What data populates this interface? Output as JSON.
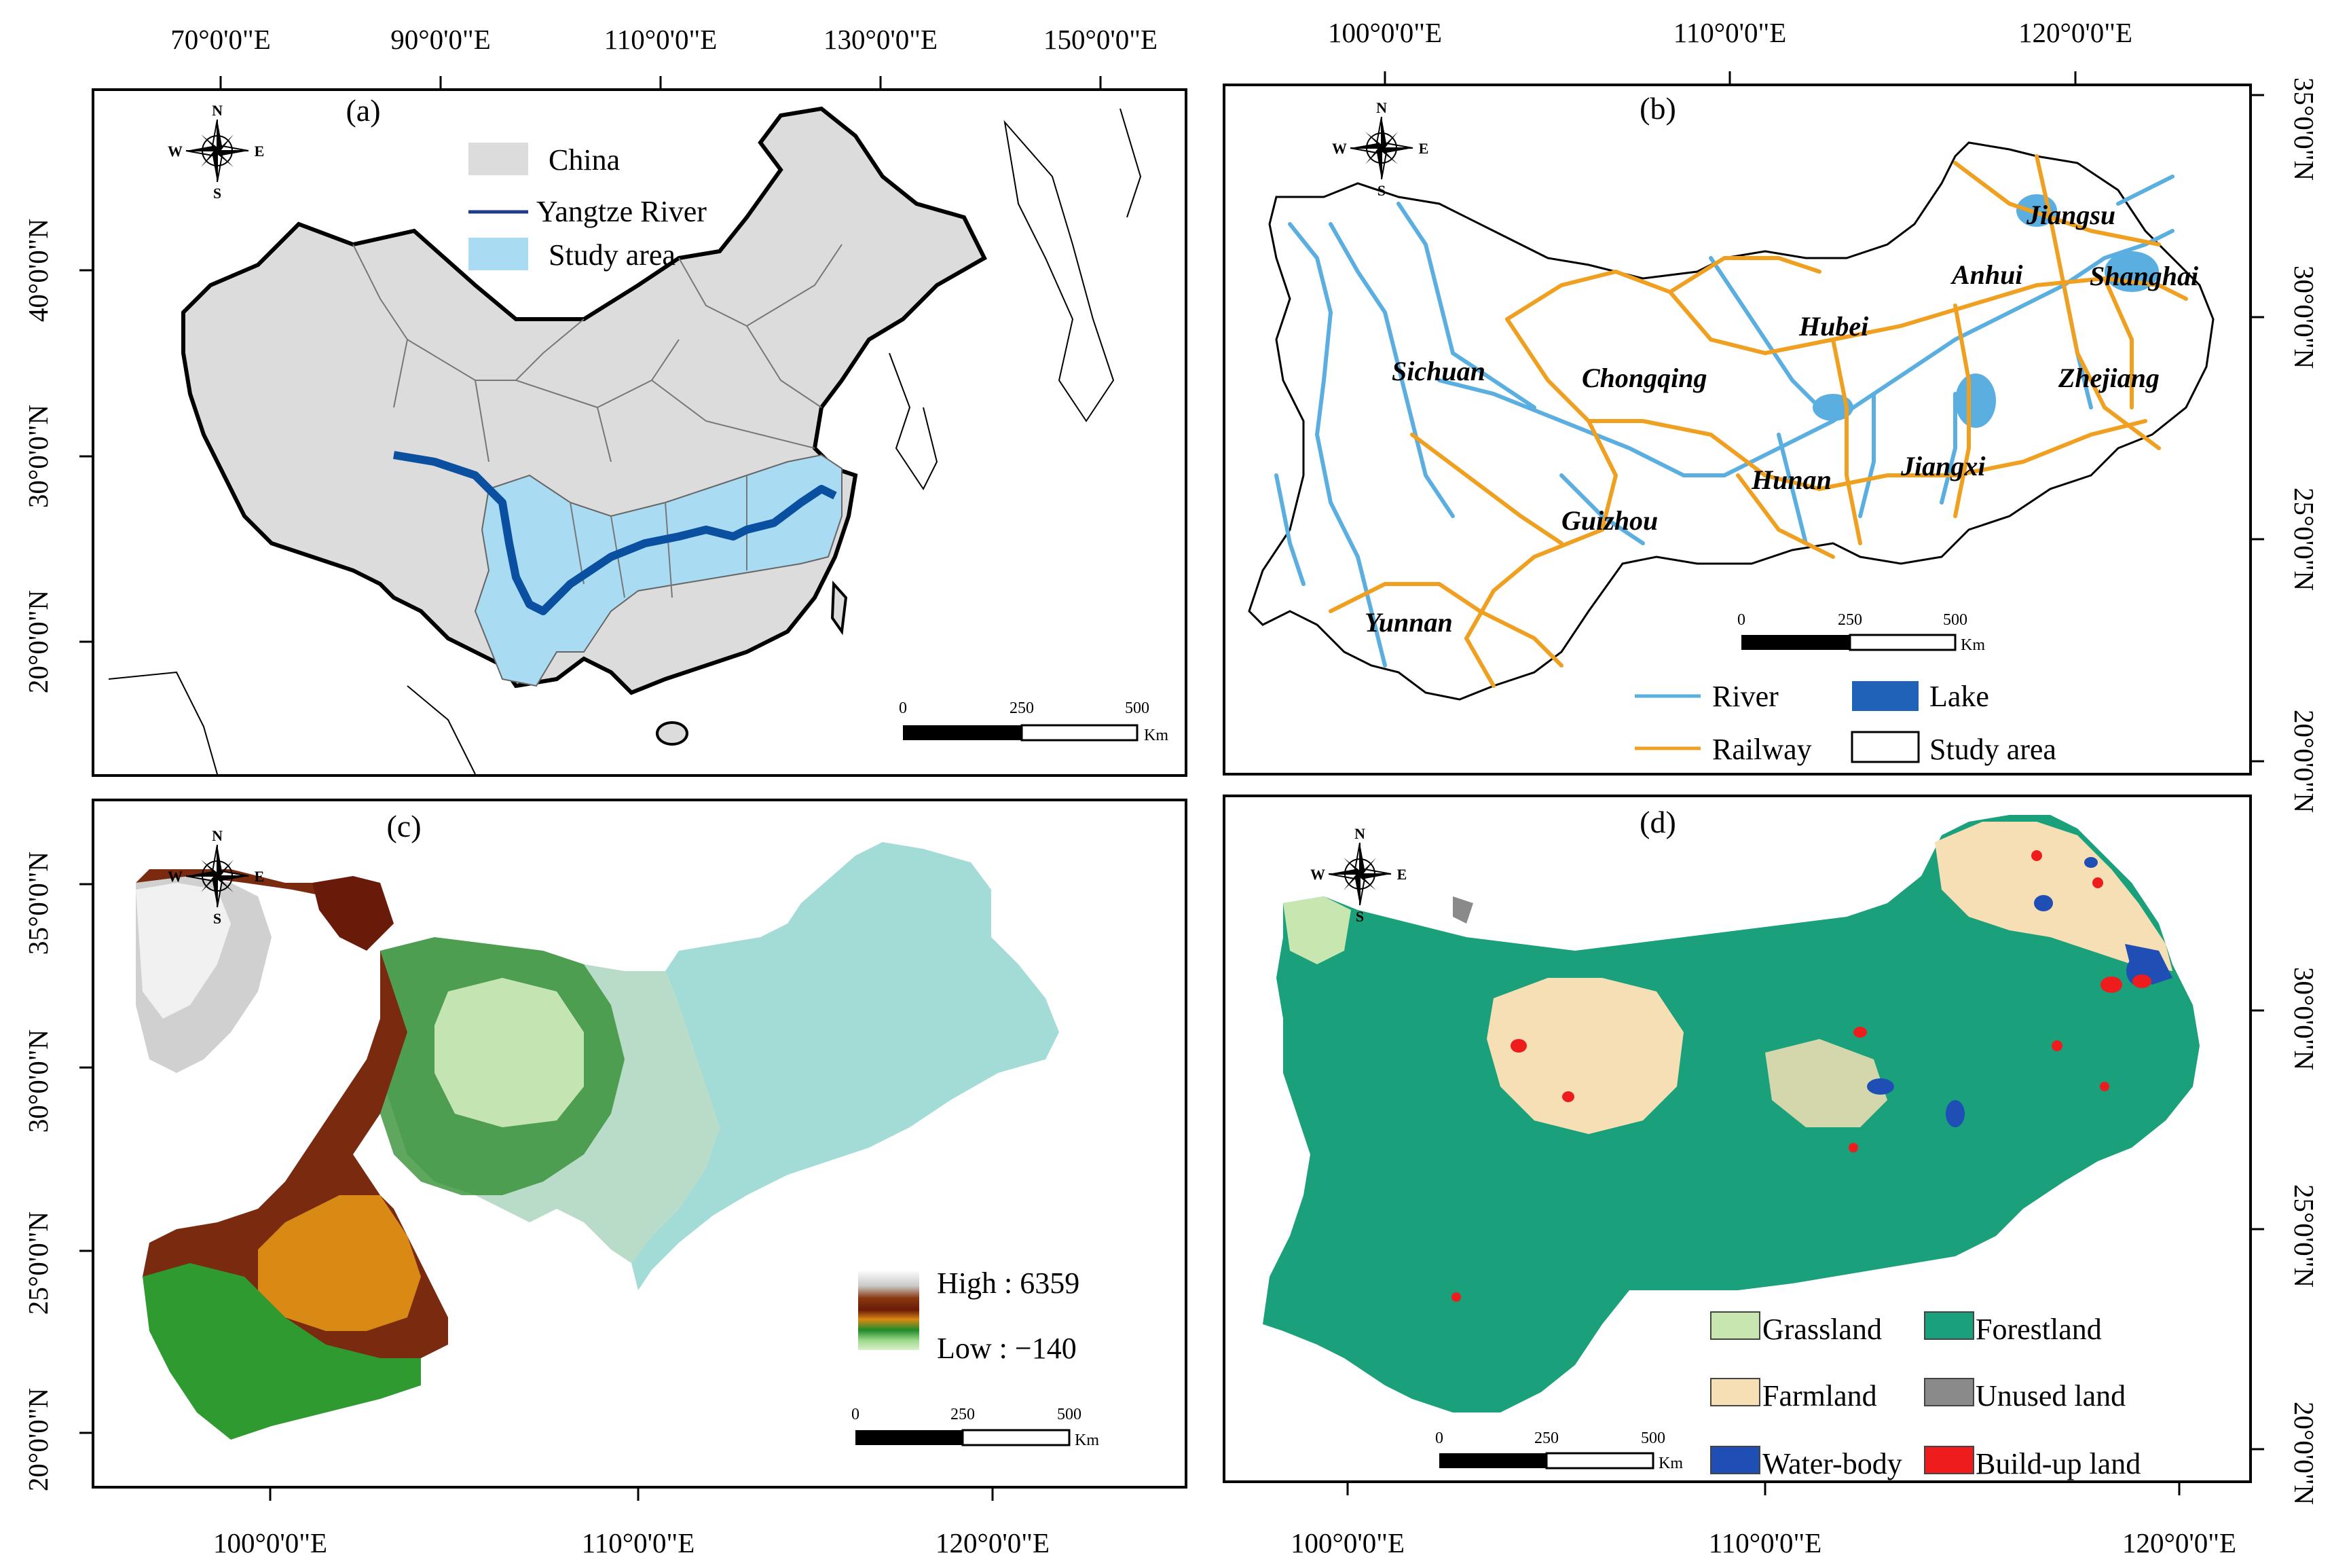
{
  "panels": {
    "a": {
      "label": "(a)",
      "top_ticks": [
        "70°0'0\"E",
        "90°0'0\"E",
        "110°0'0\"E",
        "130°0'0\"E",
        "150°0'0\"E"
      ],
      "left_ticks": [
        "40°0'0\"N",
        "30°0'0\"N",
        "20°0'0\"N"
      ],
      "legend": [
        "China",
        "Yangtze River",
        "Study area"
      ],
      "scale": [
        "0",
        "250",
        "500",
        "Km"
      ]
    },
    "b": {
      "label": "(b)",
      "top_ticks": [
        "100°0'0\"E",
        "110°0'0\"E",
        "120°0'0\"E"
      ],
      "right_ticks": [
        "35°0'0\"N",
        "30°0'0\"N",
        "25°0'0\"N",
        "20°0'0\"N"
      ],
      "provinces": [
        "Sichuan",
        "Chongqing",
        "Guizhou",
        "Yunnan",
        "Hubei",
        "Hunan",
        "Jiangxi",
        "Anhui",
        "Jiangsu",
        "Shanghai",
        "Zhejiang"
      ],
      "legend": [
        "River",
        "Lake",
        "Railway",
        "Study area"
      ],
      "scale": [
        "0",
        "250",
        "500",
        "Km"
      ]
    },
    "c": {
      "label": "(c)",
      "left_ticks": [
        "35°0'0\"N",
        "30°0'0\"N",
        "25°0'0\"N",
        "20°0'0\"N"
      ],
      "bottom_ticks": [
        "100°0'0\"E",
        "110°0'0\"E",
        "120°0'0\"E"
      ],
      "legend_high": "High : 6359",
      "legend_low": "Low : −140",
      "scale": [
        "0",
        "250",
        "500",
        "Km"
      ]
    },
    "d": {
      "label": "(d)",
      "right_ticks": [
        "30°0'0\"N",
        "25°0'0\"N",
        "20°0'0\"N"
      ],
      "bottom_ticks": [
        "100°0'0\"E",
        "110°0'0\"E",
        "120°0'0\"E"
      ],
      "legend": [
        "Grassland",
        "Forestland",
        "Farmland",
        "Unused land",
        "Water-body",
        "Build-up land"
      ],
      "scale": [
        "0",
        "250",
        "500",
        "Km"
      ]
    }
  },
  "compass": [
    "N",
    "S",
    "W",
    "E"
  ],
  "colors": {
    "china": "#dcdcdc",
    "study_area": "#a9dcf3",
    "yangtze": "#0a4fa0",
    "river": "#5aaee0",
    "railway": "#f0a020",
    "lake": "#1f62b8",
    "grassland": "#c8e6b0",
    "forestland": "#1aa07a",
    "farmland": "#f6dfb4",
    "unused": "#8a8a8a",
    "water": "#1f4fb5",
    "buildup": "#ee1c1c"
  }
}
